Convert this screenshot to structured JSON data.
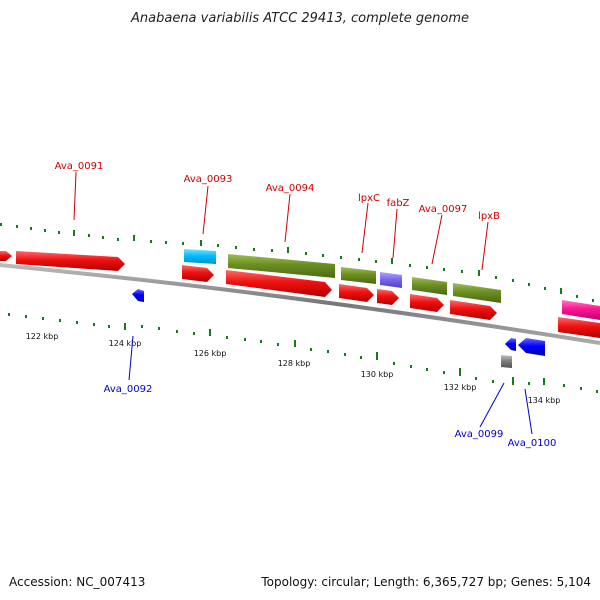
{
  "title": "Anabaena variabilis ATCC 29413, complete genome",
  "footer": {
    "accession": "Accession: NC_007413",
    "summary": "Topology: circular; Length: 6,365,727 bp; Genes: 5,104"
  },
  "scale": {
    "unit": "kbp",
    "labels": [
      "122 kbp",
      "124 kbp",
      "126 kbp",
      "128 kbp",
      "130 kbp",
      "132 kbp",
      "134 kbp"
    ]
  },
  "gene_labels": {
    "top": [
      "Ava_0091",
      "Ava_0093",
      "Ava_0094",
      "lpxC",
      "fabZ",
      "Ava_0097",
      "lpxB"
    ],
    "bottom": [
      "Ava_0092",
      "Ava_0099",
      "Ava_0100"
    ]
  },
  "colors": {
    "top_label": "#cc0000",
    "bottom_label": "#0000cc",
    "gene_red": "#ee1111",
    "gene_olive": "#6b8e23",
    "gene_cyan": "#00bfff",
    "gene_purple": "#7b68ee",
    "gene_blue": "#0000ff",
    "gene_magenta": "#ff1493",
    "gene_gray": "#808080",
    "tick_green": "#1a7a1a",
    "backbone": "#888888"
  }
}
